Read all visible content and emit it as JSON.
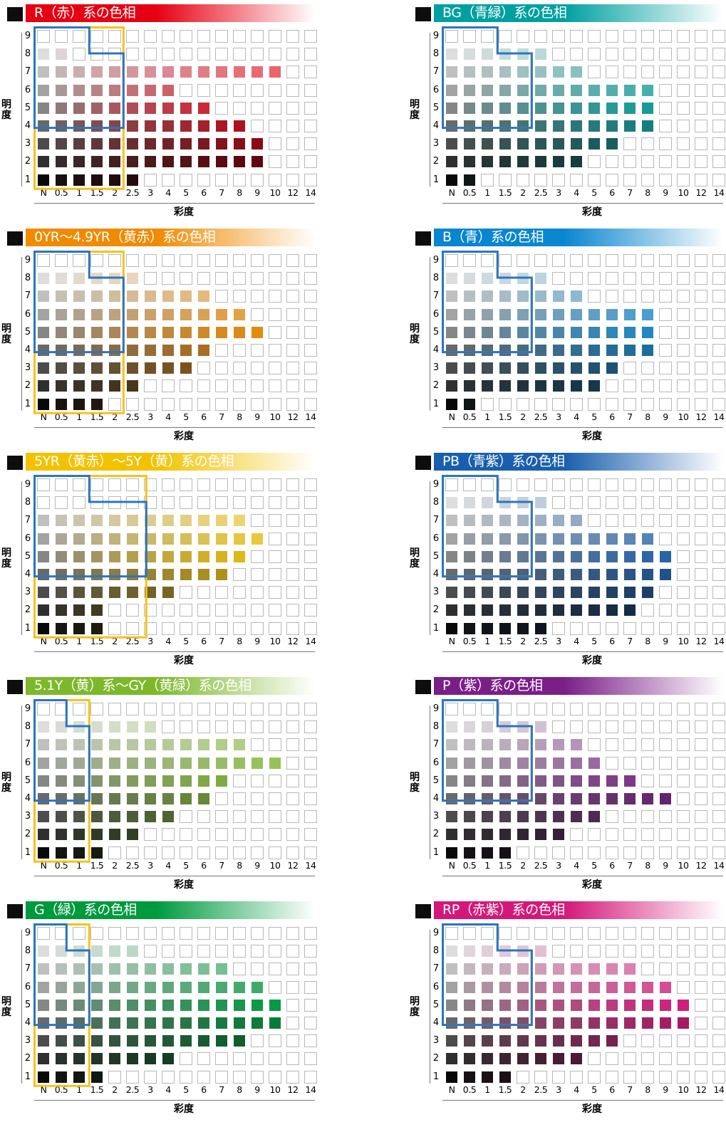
{
  "axis": {
    "y_title": "明度",
    "x_title": "彩度",
    "value_labels": [
      "9",
      "8",
      "7",
      "6",
      "5",
      "4",
      "3",
      "2",
      "1"
    ],
    "chroma_labels": [
      "N",
      "0.5",
      "1",
      "1.5",
      "2",
      "2.5",
      "3",
      "4",
      "5",
      "6",
      "7",
      "8",
      "9",
      "10",
      "12",
      "14"
    ]
  },
  "colors": {
    "outline_blue": "#2a75c2",
    "outline_yellow": "#f6c21a",
    "empty_border": "#b8b8b8"
  },
  "panels": [
    {
      "title": "R（赤）系の色相",
      "accent": "#e60012",
      "max": [
        0,
        2,
        14,
        8,
        10,
        12,
        13,
        13,
        6
      ],
      "blue": "A",
      "yellow": "B"
    },
    {
      "title": "BG（青緑）系の色相",
      "accent": "#00a0a0",
      "max": [
        0,
        6,
        8,
        12,
        12,
        12,
        10,
        8,
        2
      ],
      "blue": "A",
      "yellow": "A"
    },
    {
      "title": "0YR～4.9YR（黄赤）系の色相",
      "accent": "#f08a00",
      "max": [
        0,
        6,
        10,
        12,
        13,
        10,
        9,
        6,
        4
      ],
      "blue": "A",
      "yellow": "B"
    },
    {
      "title": "B（青）系の色相",
      "accent": "#0a86d0",
      "max": [
        0,
        6,
        8,
        12,
        12,
        12,
        10,
        9,
        2
      ],
      "blue": "A",
      "yellow": "A"
    },
    {
      "title": "5YR（黄赤）～5Y（黄）系の色相",
      "accent": "#f2c200",
      "max": [
        0,
        0,
        12,
        13,
        12,
        11,
        8,
        4,
        4
      ],
      "blue": "C",
      "yellow": "D"
    },
    {
      "title": "PB（青紫）系の色相",
      "accent": "#1a5fae",
      "max": [
        0,
        6,
        8,
        12,
        13,
        13,
        12,
        11,
        6
      ],
      "blue": "A",
      "yellow": "A"
    },
    {
      "title": "5.1Y（黄）系～GY（黄緑）系の色相",
      "accent": "#7db82a",
      "max": [
        0,
        7,
        12,
        14,
        11,
        10,
        8,
        6,
        4
      ],
      "blue": "E",
      "yellow": "F"
    },
    {
      "title": "P（紫）系の色相",
      "accent": "#7a1f88",
      "max": [
        0,
        6,
        8,
        9,
        11,
        13,
        9,
        7,
        4
      ],
      "blue": "A",
      "yellow": "A"
    },
    {
      "title": "G（緑）系の色相",
      "accent": "#009a3e",
      "max": [
        0,
        6,
        11,
        13,
        14,
        14,
        12,
        8,
        4
      ],
      "blue": "E",
      "yellow": "F"
    },
    {
      "title": "RP（赤紫）系の色相",
      "accent": "#d4187a",
      "max": [
        0,
        6,
        11,
        13,
        14,
        14,
        10,
        8,
        4
      ],
      "blue": "A",
      "yellow": "A"
    }
  ]
}
